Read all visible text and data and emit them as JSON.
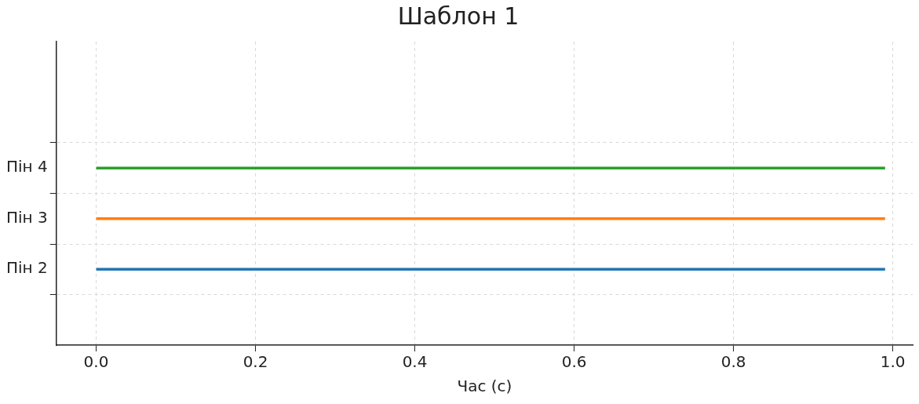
{
  "chart_data": {
    "type": "bar",
    "orientation": "horizontal",
    "title": "Шаблон 1",
    "xlabel": "Час (с)",
    "xlim": [
      -0.05,
      1.025
    ],
    "xticks": [
      {
        "value": 0,
        "label": "0.0"
      },
      {
        "value": 0.2,
        "label": "0.2"
      },
      {
        "value": 0.4,
        "label": "0.4"
      },
      {
        "value": 0.6,
        "label": "0.6"
      },
      {
        "value": 0.8,
        "label": "0.8"
      },
      {
        "value": 1,
        "label": "1.0"
      }
    ],
    "categories": [
      "Пін 4",
      "Пін 3",
      "Пін 2"
    ],
    "base": [
      0,
      0,
      0
    ],
    "values": [
      0.99,
      0.99,
      0.99
    ],
    "colors": [
      "#2ca02c",
      "#ff7f0e",
      "#1f77b4"
    ],
    "grid": true
  }
}
